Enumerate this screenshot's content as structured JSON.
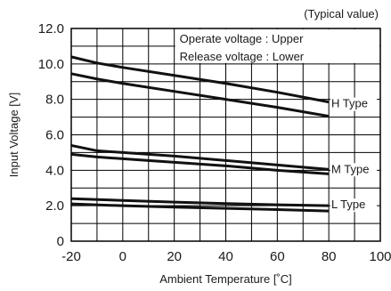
{
  "chart_data": {
    "type": "line",
    "title": "",
    "note": "(Typical value)",
    "xlabel": "Ambient Temperature [˚C]",
    "ylabel": "Input Voltage [V]",
    "xlim": [
      -20,
      100
    ],
    "ylim": [
      0,
      12
    ],
    "x_ticks": [
      "-20",
      "0",
      "20",
      "40",
      "60",
      "80",
      "100"
    ],
    "y_ticks": [
      "0",
      "2.0",
      "4.0",
      "6.0",
      "8.0",
      "10.0",
      "12.0"
    ],
    "grid": true,
    "legend": [
      "Operate voltage : Upper",
      "Release voltage : Lower"
    ],
    "legend_position": "top-right",
    "series_labels": [
      "H Type",
      "M Type",
      "L Type"
    ],
    "series": [
      {
        "x": [
          -20,
          -10,
          0,
          20,
          40,
          60,
          80
        ],
        "y": [
          10.4,
          10.05,
          9.8,
          9.35,
          8.9,
          8.4,
          7.85
        ]
      },
      {
        "x": [
          -20,
          -10,
          0,
          20,
          40,
          60,
          80
        ],
        "y": [
          9.45,
          9.15,
          8.9,
          8.45,
          8.0,
          7.55,
          7.05
        ]
      },
      {
        "x": [
          -20,
          -10,
          0,
          20,
          40,
          60,
          80
        ],
        "y": [
          5.4,
          5.1,
          5.0,
          4.8,
          4.55,
          4.3,
          4.05
        ]
      },
      {
        "x": [
          -20,
          -10,
          0,
          20,
          40,
          60,
          80
        ],
        "y": [
          4.9,
          4.75,
          4.65,
          4.45,
          4.25,
          4.0,
          3.8
        ]
      },
      {
        "x": [
          -20,
          0,
          20,
          40,
          60,
          80
        ],
        "y": [
          2.4,
          2.3,
          2.2,
          2.12,
          2.05,
          2.0
        ]
      },
      {
        "x": [
          -20,
          0,
          20,
          40,
          60,
          80
        ],
        "y": [
          2.1,
          2.0,
          1.92,
          1.85,
          1.78,
          1.7
        ]
      }
    ]
  }
}
